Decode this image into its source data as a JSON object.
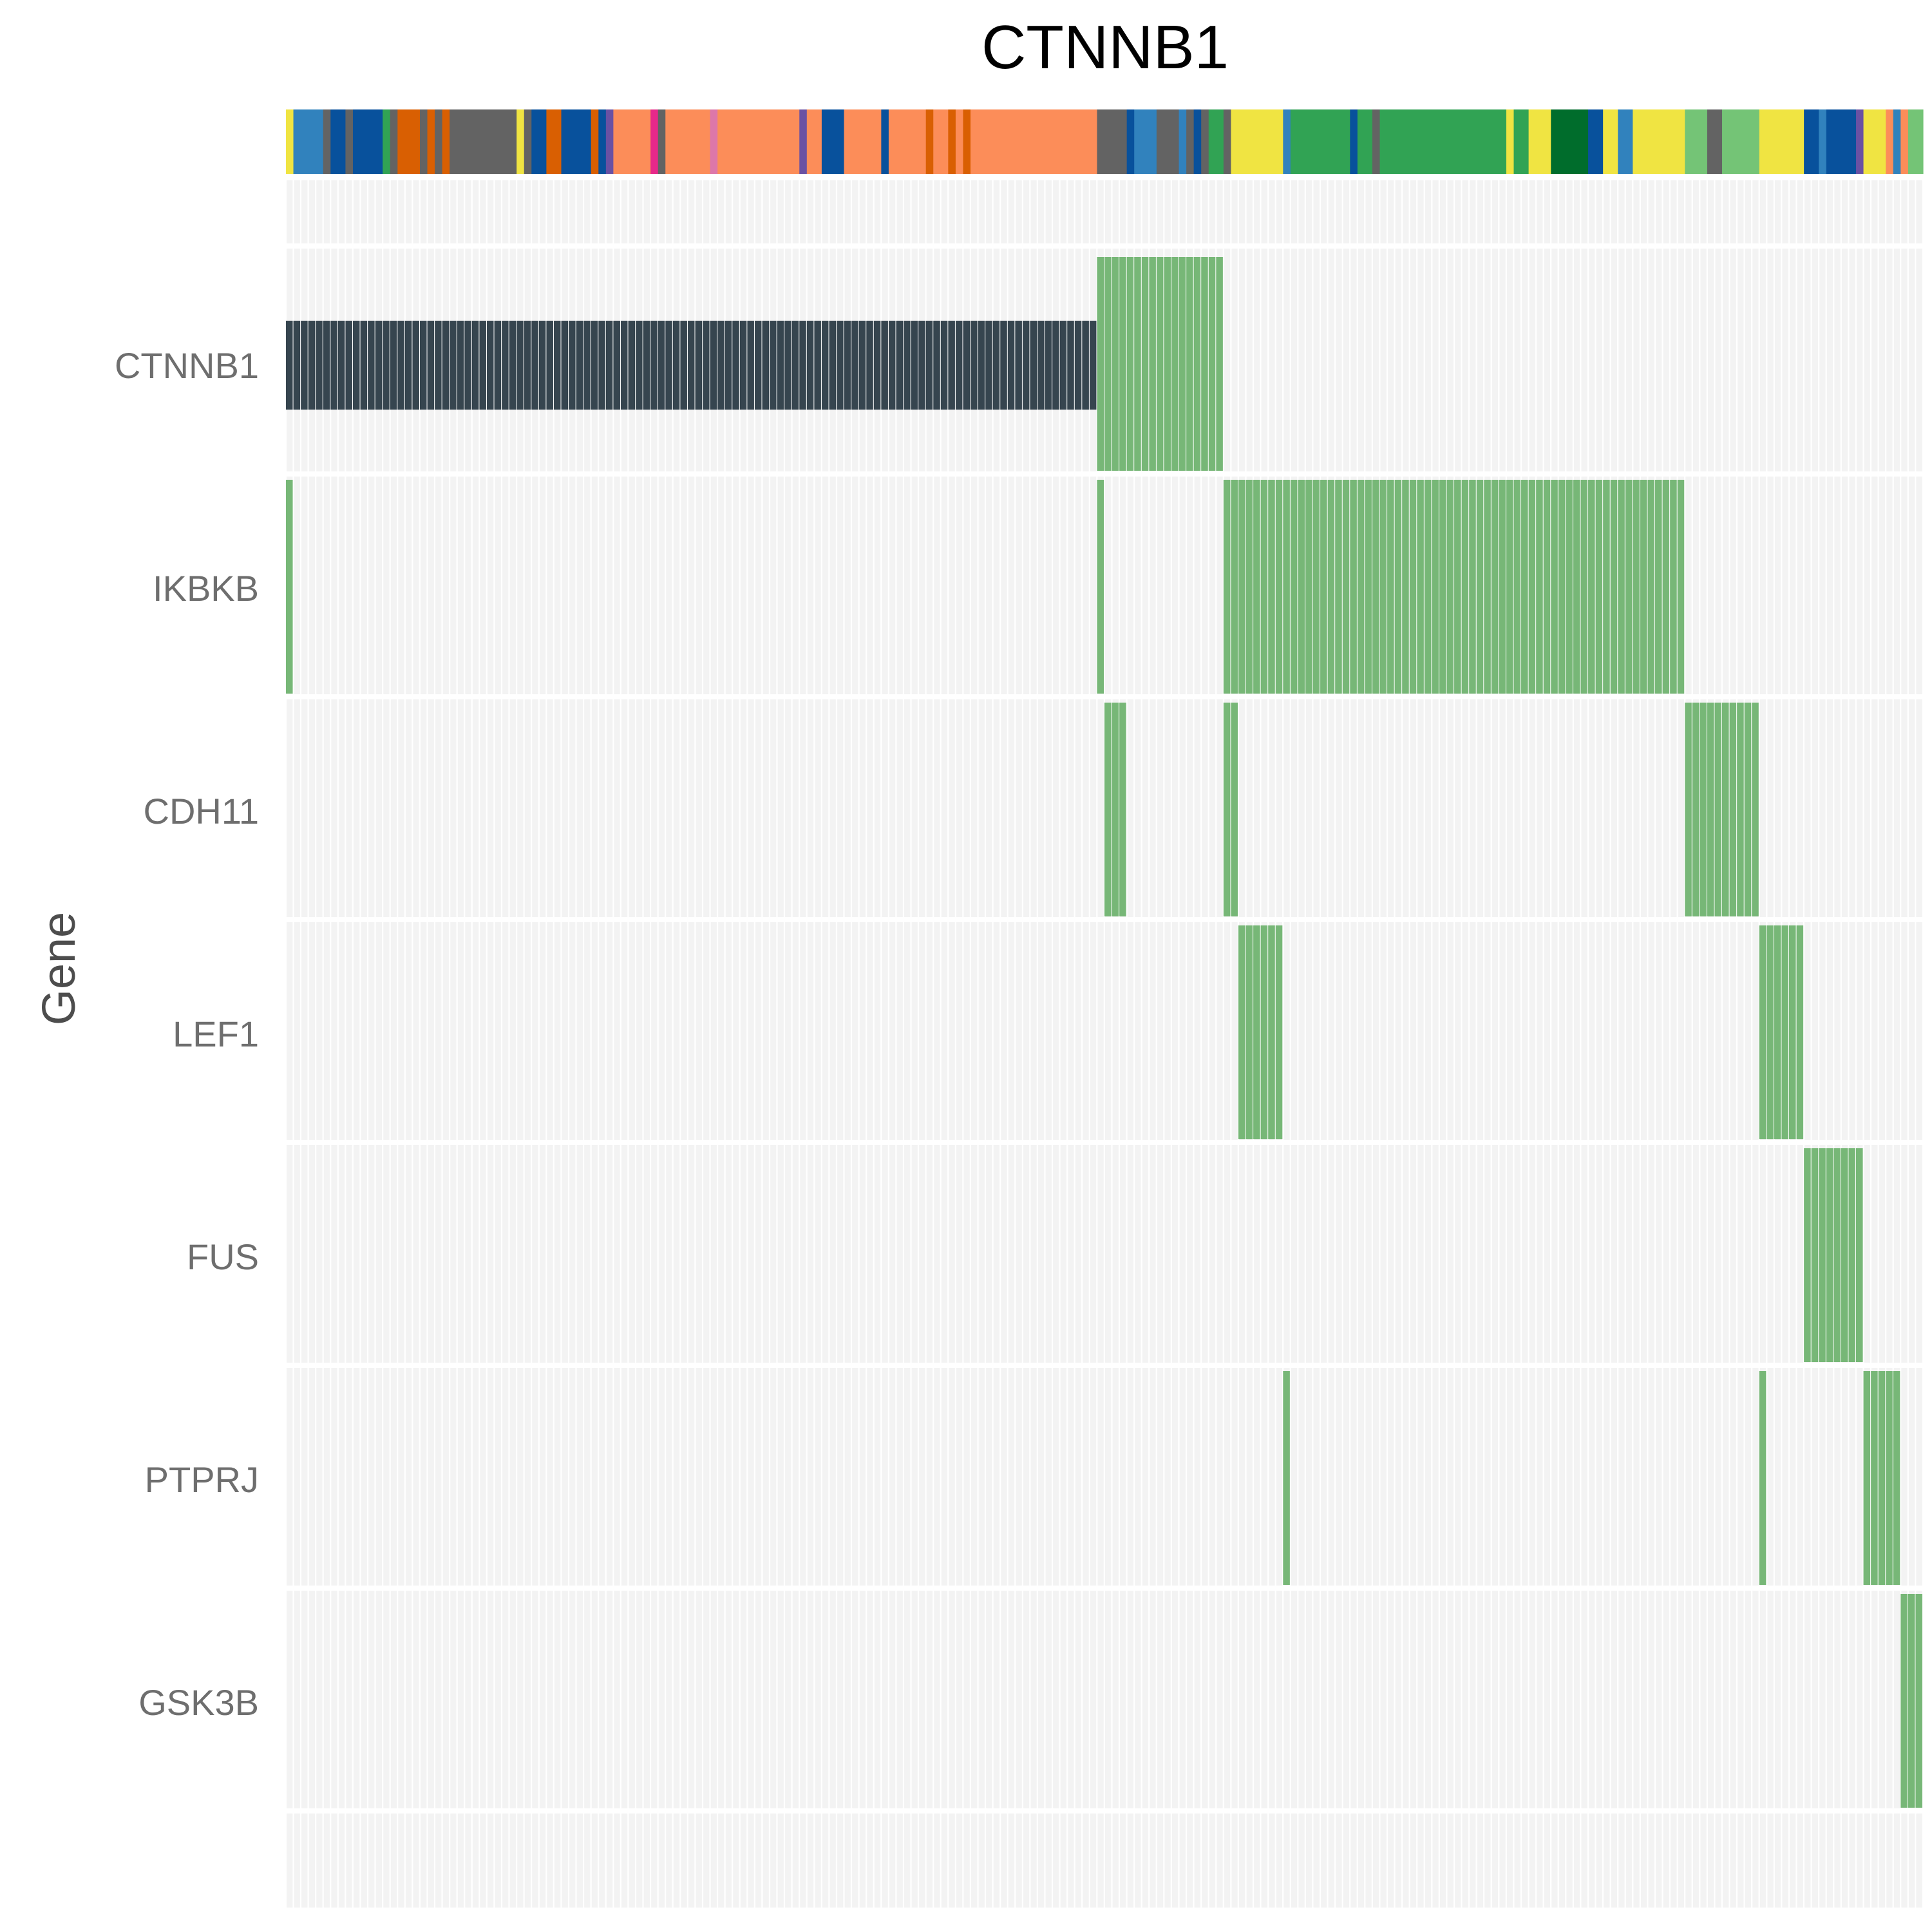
{
  "chart_data": {
    "type": "heatmap",
    "title": "CTNNB1",
    "ylabel": "Gene",
    "xlabel": "",
    "n_samples": 220,
    "genes": [
      "CTNNB1",
      "IKBKB",
      "CDH11",
      "LEF1",
      "FUS",
      "PTPRJ",
      "GSK3B"
    ],
    "alteration_colors": {
      "dark": "#36454f",
      "green": "#77b777"
    },
    "alterations": {
      "CTNNB1": [
        {
          "start": 0,
          "end": 109,
          "color": "dark"
        },
        {
          "start": 109,
          "end": 126,
          "color": "green"
        }
      ],
      "IKBKB": [
        {
          "start": 0,
          "end": 1,
          "color": "green"
        },
        {
          "start": 109,
          "end": 110,
          "color": "green"
        },
        {
          "start": 126,
          "end": 188,
          "color": "green"
        }
      ],
      "CDH11": [
        {
          "start": 110,
          "end": 113,
          "color": "green"
        },
        {
          "start": 126,
          "end": 128,
          "color": "green"
        },
        {
          "start": 188,
          "end": 198,
          "color": "green"
        }
      ],
      "LEF1": [
        {
          "start": 128,
          "end": 134,
          "color": "green"
        },
        {
          "start": 198,
          "end": 204,
          "color": "green"
        }
      ],
      "FUS": [
        {
          "start": 204,
          "end": 212,
          "color": "green"
        }
      ],
      "PTPRJ": [
        {
          "start": 134,
          "end": 135,
          "color": "green"
        },
        {
          "start": 198,
          "end": 199,
          "color": "green"
        },
        {
          "start": 212,
          "end": 217,
          "color": "green"
        }
      ],
      "GSK3B": [
        {
          "start": 217,
          "end": 220,
          "color": "green"
        }
      ]
    },
    "annotation_bar": [
      {
        "start": 0,
        "end": 1,
        "color": "#f0e442"
      },
      {
        "start": 1,
        "end": 5,
        "color": "#3182bd"
      },
      {
        "start": 5,
        "end": 6,
        "color": "#636363"
      },
      {
        "start": 6,
        "end": 8,
        "color": "#08519c"
      },
      {
        "start": 8,
        "end": 9,
        "color": "#636363"
      },
      {
        "start": 9,
        "end": 13,
        "color": "#08519c"
      },
      {
        "start": 13,
        "end": 14,
        "color": "#31a354"
      },
      {
        "start": 14,
        "end": 15,
        "color": "#636363"
      },
      {
        "start": 15,
        "end": 16,
        "color": "#d95f02"
      },
      {
        "start": 16,
        "end": 18,
        "color": "#d95f02"
      },
      {
        "start": 18,
        "end": 19,
        "color": "#636363"
      },
      {
        "start": 19,
        "end": 20,
        "color": "#d95f02"
      },
      {
        "start": 20,
        "end": 21,
        "color": "#636363"
      },
      {
        "start": 21,
        "end": 22,
        "color": "#d95f02"
      },
      {
        "start": 22,
        "end": 31,
        "color": "#636363"
      },
      {
        "start": 31,
        "end": 32,
        "color": "#f0e442"
      },
      {
        "start": 32,
        "end": 33,
        "color": "#636363"
      },
      {
        "start": 33,
        "end": 35,
        "color": "#08519c"
      },
      {
        "start": 35,
        "end": 37,
        "color": "#d95f02"
      },
      {
        "start": 37,
        "end": 41,
        "color": "#08519c"
      },
      {
        "start": 41,
        "end": 42,
        "color": "#d95f02"
      },
      {
        "start": 42,
        "end": 43,
        "color": "#08519c"
      },
      {
        "start": 43,
        "end": 44,
        "color": "#6a51a3"
      },
      {
        "start": 44,
        "end": 49,
        "color": "#fc8d59"
      },
      {
        "start": 49,
        "end": 50,
        "color": "#e7298a"
      },
      {
        "start": 50,
        "end": 51,
        "color": "#636363"
      },
      {
        "start": 51,
        "end": 57,
        "color": "#fc8d59"
      },
      {
        "start": 57,
        "end": 58,
        "color": "#dd77aa"
      },
      {
        "start": 58,
        "end": 69,
        "color": "#fc8d59"
      },
      {
        "start": 69,
        "end": 70,
        "color": "#6a51a3"
      },
      {
        "start": 70,
        "end": 72,
        "color": "#fc8d59"
      },
      {
        "start": 72,
        "end": 75,
        "color": "#08519c"
      },
      {
        "start": 75,
        "end": 80,
        "color": "#fc8d59"
      },
      {
        "start": 80,
        "end": 81,
        "color": "#08519c"
      },
      {
        "start": 81,
        "end": 86,
        "color": "#fc8d59"
      },
      {
        "start": 86,
        "end": 87,
        "color": "#d95f02"
      },
      {
        "start": 87,
        "end": 89,
        "color": "#fc8d59"
      },
      {
        "start": 89,
        "end": 90,
        "color": "#d95f02"
      },
      {
        "start": 90,
        "end": 91,
        "color": "#fc8d59"
      },
      {
        "start": 91,
        "end": 92,
        "color": "#d95f02"
      },
      {
        "start": 92,
        "end": 109,
        "color": "#fc8d59"
      },
      {
        "start": 109,
        "end": 113,
        "color": "#636363"
      },
      {
        "start": 113,
        "end": 114,
        "color": "#08519c"
      },
      {
        "start": 114,
        "end": 117,
        "color": "#3182bd"
      },
      {
        "start": 117,
        "end": 120,
        "color": "#636363"
      },
      {
        "start": 120,
        "end": 121,
        "color": "#3182bd"
      },
      {
        "start": 121,
        "end": 122,
        "color": "#636363"
      },
      {
        "start": 122,
        "end": 123,
        "color": "#08519c"
      },
      {
        "start": 123,
        "end": 124,
        "color": "#636363"
      },
      {
        "start": 124,
        "end": 126,
        "color": "#31a354"
      },
      {
        "start": 126,
        "end": 127,
        "color": "#636363"
      },
      {
        "start": 127,
        "end": 134,
        "color": "#f0e442"
      },
      {
        "start": 134,
        "end": 135,
        "color": "#3182bd"
      },
      {
        "start": 135,
        "end": 143,
        "color": "#31a354"
      },
      {
        "start": 143,
        "end": 144,
        "color": "#08519c"
      },
      {
        "start": 144,
        "end": 146,
        "color": "#31a354"
      },
      {
        "start": 146,
        "end": 147,
        "color": "#636363"
      },
      {
        "start": 147,
        "end": 164,
        "color": "#31a354"
      },
      {
        "start": 164,
        "end": 165,
        "color": "#f0e442"
      },
      {
        "start": 165,
        "end": 167,
        "color": "#31a354"
      },
      {
        "start": 167,
        "end": 170,
        "color": "#f0e442"
      },
      {
        "start": 170,
        "end": 175,
        "color": "#006d2c"
      },
      {
        "start": 175,
        "end": 177,
        "color": "#08519c"
      },
      {
        "start": 177,
        "end": 179,
        "color": "#f0e442"
      },
      {
        "start": 179,
        "end": 181,
        "color": "#3182bd"
      },
      {
        "start": 181,
        "end": 188,
        "color": "#f0e442"
      },
      {
        "start": 188,
        "end": 191,
        "color": "#74c476"
      },
      {
        "start": 191,
        "end": 193,
        "color": "#636363"
      },
      {
        "start": 193,
        "end": 198,
        "color": "#74c476"
      },
      {
        "start": 198,
        "end": 204,
        "color": "#f0e442"
      },
      {
        "start": 204,
        "end": 206,
        "color": "#08519c"
      },
      {
        "start": 206,
        "end": 207,
        "color": "#3182bd"
      },
      {
        "start": 207,
        "end": 211,
        "color": "#08519c"
      },
      {
        "start": 211,
        "end": 212,
        "color": "#6a51a3"
      },
      {
        "start": 212,
        "end": 215,
        "color": "#f0e442"
      },
      {
        "start": 215,
        "end": 216,
        "color": "#fc8d59"
      },
      {
        "start": 216,
        "end": 217,
        "color": "#3182bd"
      },
      {
        "start": 217,
        "end": 218,
        "color": "#fc8d59"
      },
      {
        "start": 218,
        "end": 220,
        "color": "#74c476"
      }
    ]
  }
}
